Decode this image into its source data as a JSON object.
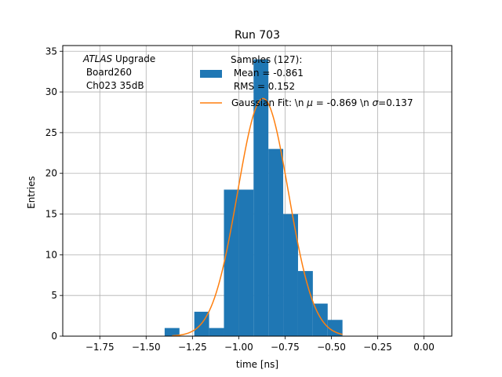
{
  "chart_data": {
    "type": "bar",
    "title": "Run 703",
    "xlabel": "time [ns]",
    "ylabel": "Entries",
    "xlim": [
      -1.95,
      0.15
    ],
    "ylim": [
      0,
      35.7
    ],
    "grid": true,
    "x_ticks": [
      -1.75,
      -1.5,
      -1.25,
      -1.0,
      -0.75,
      -0.5,
      -0.25,
      0.0
    ],
    "x_tick_labels": [
      "−1.75",
      "−1.50",
      "−1.25",
      "−1.00",
      "−0.75",
      "−0.50",
      "−0.25",
      "0.00"
    ],
    "y_ticks": [
      0,
      5,
      10,
      15,
      20,
      25,
      30,
      35
    ],
    "y_tick_labels": [
      "0",
      "5",
      "10",
      "15",
      "20",
      "25",
      "30",
      "35"
    ],
    "histogram": {
      "bin_edges": [
        -1.4,
        -1.32,
        -1.24,
        -1.16,
        -1.08,
        -1.0,
        -0.92,
        -0.84,
        -0.76,
        -0.68,
        -0.6,
        -0.52,
        -0.44
      ],
      "counts": [
        1,
        0,
        3,
        1,
        18,
        18,
        34,
        23,
        15,
        8,
        4,
        2
      ],
      "color": "#1f77b4"
    },
    "fit": {
      "type": "gaussian",
      "mu": -0.869,
      "sigma": 0.137,
      "amplitude": 29.2,
      "x_range": [
        -1.36,
        -0.44
      ],
      "color": "#ff7f0e"
    },
    "annotation": {
      "lines": [
        "ATLAS Upgrade",
        " Board260",
        " Ch023 35dB"
      ],
      "italic_word": "ATLAS",
      "rest_of_first_line": " Upgrade"
    },
    "legend": {
      "placement": "top-center",
      "hist_label_lines": [
        "Samples (127):",
        " Mean = -0.861",
        " RMS = 0.152"
      ],
      "fit_label_parts": {
        "a": "Gaussian Fit: \\n ",
        "mu": "μ",
        "b": " = -0.869 \\n ",
        "sigma": "σ",
        "c": "=0.137"
      }
    }
  }
}
